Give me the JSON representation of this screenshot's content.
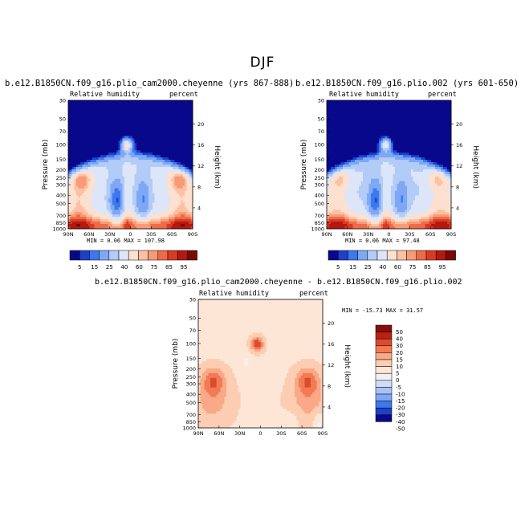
{
  "figure": {
    "title": "DJF"
  },
  "panels": {
    "top_left": {
      "title": "b.e12.B1850CN.f09_g16.plio_cam2000.cheyenne (yrs 867-888)",
      "left_label": "Relative humidity",
      "right_label": "percent",
      "stats": "MIN =   0.06   MAX = 107.98"
    },
    "top_right": {
      "title": "b.e12.B1850CN.f09_g16.plio.002 (yrs 601-650)",
      "left_label": "Relative humidity",
      "right_label": "percent",
      "stats": "MIN =   0.06   MAX =  97.48"
    },
    "bottom": {
      "title": "b.e12.B1850CN.f09_g16.plio_cam2000.cheyenne - b.e12.B1850CN.f09_g16.plio.002",
      "left_label": "Relative humidity",
      "right_label": "percent",
      "stats": "MIN = -15.73   MAX =  31.57"
    }
  },
  "colors": {
    "abs_scale": [
      "#08088c",
      "#1e3fc8",
      "#3c78ee",
      "#7ea8f4",
      "#b2cbf7",
      "#dce6f8",
      "#fde0cf",
      "#fcc0a2",
      "#f89a76",
      "#ef6a47",
      "#d93a25",
      "#b5180f",
      "#7a0a05"
    ],
    "diff_scale": [
      "#08088c",
      "#1e3fc8",
      "#3c78ee",
      "#7ea8f4",
      "#a9c3f7",
      "#cfdcf8",
      "#f1f1f1",
      "#fde6d6",
      "#fccdb2",
      "#f9a987",
      "#f27a55",
      "#dd4b2c",
      "#bb2213",
      "#8a0d07"
    ]
  },
  "chart_data": [
    {
      "type": "heatmap",
      "panel": "top_left",
      "ylabel": "Pressure (mb)",
      "ylabel_right": "Height (km)",
      "x_ticks": [
        "90N",
        "60N",
        "30N",
        "0",
        "30S",
        "60S",
        "90S"
      ],
      "y_ticks": [
        "30",
        "50",
        "70",
        "100",
        "150",
        "200",
        "250",
        "300",
        "400",
        "500",
        "700",
        "850",
        "1000"
      ],
      "y_ticks_right": [
        "20",
        "16",
        "12",
        "8",
        "4"
      ],
      "colorbar_labels": [
        "5",
        "15",
        "25",
        "40",
        "60",
        "75",
        "85",
        "95"
      ],
      "min": 0.06,
      "max": 107.98
    },
    {
      "type": "heatmap",
      "panel": "top_right",
      "ylabel": "Pressure (mb)",
      "ylabel_right": "Height (km)",
      "x_ticks": [
        "90N",
        "60N",
        "30N",
        "0",
        "30S",
        "60S",
        "90S"
      ],
      "y_ticks": [
        "30",
        "50",
        "70",
        "100",
        "150",
        "200",
        "250",
        "300",
        "400",
        "500",
        "700",
        "850",
        "1000"
      ],
      "y_ticks_right": [
        "20",
        "16",
        "12",
        "8",
        "4"
      ],
      "colorbar_labels": [
        "5",
        "15",
        "25",
        "40",
        "60",
        "75",
        "85",
        "95"
      ],
      "min": 0.06,
      "max": 97.48
    },
    {
      "type": "heatmap",
      "panel": "bottom",
      "ylabel": "Pressure (mb)",
      "ylabel_right": "Height (km)",
      "x_ticks": [
        "90N",
        "60N",
        "30N",
        "0",
        "30S",
        "60S",
        "90S"
      ],
      "y_ticks": [
        "30",
        "50",
        "70",
        "100",
        "150",
        "200",
        "250",
        "300",
        "400",
        "500",
        "700",
        "850",
        "1000"
      ],
      "y_ticks_right": [
        "20",
        "16",
        "12",
        "8",
        "4"
      ],
      "colorbar_labels": [
        "50",
        "40",
        "30",
        "20",
        "15",
        "10",
        "5",
        "0",
        "-5",
        "-10",
        "-15",
        "-20",
        "-30",
        "-40",
        "-50"
      ],
      "min": -15.73,
      "max": 31.57
    }
  ]
}
